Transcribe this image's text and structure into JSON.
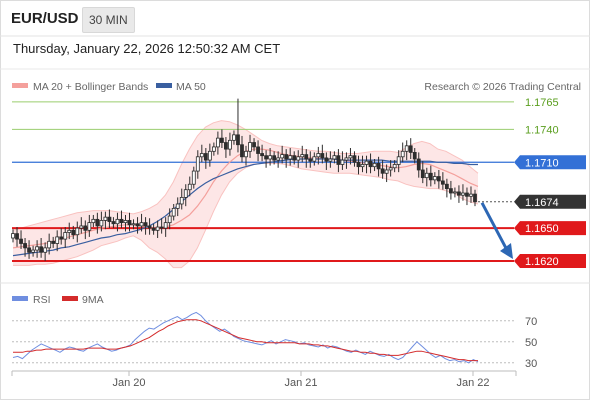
{
  "header": {
    "pair": "EUR/USD",
    "timeframe": "30 MIN",
    "datetime": "Thursday, January 22, 2026 12:50:32 AM CET"
  },
  "legend": {
    "ma20": "MA 20 + Bollinger Bands",
    "ma50": "MA 50",
    "credit": "Research © 2026 Trading Central",
    "rsi": "RSI",
    "rsi_ma": "9MA"
  },
  "colors": {
    "ma20": "#f4a09c",
    "ma50": "#3a5fa0",
    "band_fill": "#fde3e3",
    "candle": "#2d2d2d",
    "resistance": "#9acd6e",
    "pivot": "#3370d6",
    "support": "#e0191b",
    "current": "#333333",
    "arrow": "#2d67b4",
    "rsi": "#6f8ee0",
    "rsi_ma": "#d42b2b"
  },
  "chart_data": [
    {
      "type": "candlestick",
      "title": "EUR/USD 30 MIN",
      "ylim": [
        1.16,
        1.1795
      ],
      "x_tick_labels": [
        "Jan 20",
        "Jan 21",
        "Jan 22"
      ],
      "levels": [
        {
          "value": 1.1765,
          "label": "1.1765",
          "kind": "resistance"
        },
        {
          "value": 1.174,
          "label": "1.1740",
          "kind": "resistance"
        },
        {
          "value": 1.171,
          "label": "1.1710",
          "kind": "pivot"
        },
        {
          "value": 1.1674,
          "label": "1.1674",
          "kind": "current"
        },
        {
          "value": 1.165,
          "label": "1.1650",
          "kind": "support"
        },
        {
          "value": 1.162,
          "label": "1.1620",
          "kind": "support"
        }
      ],
      "close_series": [
        1.1645,
        1.164,
        1.1636,
        1.1632,
        1.1628,
        1.163,
        1.1633,
        1.1628,
        1.1632,
        1.1638,
        1.1636,
        1.1642,
        1.164,
        1.1646,
        1.1648,
        1.1644,
        1.165,
        1.1652,
        1.1648,
        1.1655,
        1.1658,
        1.1652,
        1.1657,
        1.166,
        1.1656,
        1.1654,
        1.1658,
        1.1655,
        1.1657,
        1.1653,
        1.1654,
        1.1652,
        1.1655,
        1.1652,
        1.165,
        1.1648,
        1.1651,
        1.165,
        1.1655,
        1.1661,
        1.1668,
        1.1672,
        1.1678,
        1.1685,
        1.169,
        1.1702,
        1.1715,
        1.1718,
        1.1712,
        1.172,
        1.1724,
        1.1732,
        1.1728,
        1.1722,
        1.173,
        1.1735,
        1.1726,
        1.1715,
        1.172,
        1.1728,
        1.1724,
        1.1718,
        1.1716,
        1.1713,
        1.1716,
        1.1712,
        1.1714,
        1.1717,
        1.1713,
        1.1716,
        1.1712,
        1.1715,
        1.1717,
        1.1713,
        1.1711,
        1.1715,
        1.1718,
        1.1714,
        1.1711,
        1.1713,
        1.1716,
        1.1708,
        1.1712,
        1.1714,
        1.1716,
        1.171,
        1.1706,
        1.1708,
        1.1711,
        1.1706,
        1.1709,
        1.1704,
        1.17,
        1.1703,
        1.1705,
        1.1708,
        1.1715,
        1.172,
        1.1725,
        1.1719,
        1.1713,
        1.1703,
        1.1696,
        1.17,
        1.1694,
        1.1697,
        1.1693,
        1.169,
        1.1686,
        1.1682,
        1.1683,
        1.168,
        1.1682,
        1.1679,
        1.1681,
        1.1674
      ],
      "ma20": [
        1.1632,
        1.1633,
        1.1634,
        1.1635,
        1.1636,
        1.1638,
        1.164,
        1.1642,
        1.1644,
        1.1646,
        1.1648,
        1.165,
        1.1651,
        1.1652,
        1.1653,
        1.1653,
        1.1652,
        1.165,
        1.165,
        1.1651,
        1.1653,
        1.1657,
        1.1662,
        1.167,
        1.168,
        1.1692,
        1.1702,
        1.171,
        1.1716,
        1.172,
        1.1722,
        1.1722,
        1.1721,
        1.1719,
        1.1717,
        1.1716,
        1.1715,
        1.1714,
        1.1714,
        1.1713,
        1.1713,
        1.1712,
        1.1711,
        1.171,
        1.1709,
        1.1708,
        1.1707,
        1.1706,
        1.1705,
        1.1706,
        1.1708,
        1.1709,
        1.1708,
        1.1705,
        1.1702,
        1.1699,
        1.1695,
        1.1691,
        1.1688
      ],
      "bb_upper": [
        1.1648,
        1.165,
        1.1652,
        1.1654,
        1.1656,
        1.1658,
        1.166,
        1.1662,
        1.1664,
        1.1665,
        1.1666,
        1.1666,
        1.1666,
        1.1665,
        1.1664,
        1.1663,
        1.1665,
        1.1668,
        1.1672,
        1.168,
        1.1692,
        1.1708,
        1.1722,
        1.1734,
        1.1742,
        1.1746,
        1.1748,
        1.1747,
        1.1744,
        1.174,
        1.1735,
        1.173,
        1.1727,
        1.1725,
        1.1724,
        1.1723,
        1.1722,
        1.1721,
        1.172,
        1.172,
        1.1719,
        1.1718,
        1.1718,
        1.1718,
        1.1719,
        1.172,
        1.172,
        1.172,
        1.1719,
        1.1723,
        1.1727,
        1.1729,
        1.1727,
        1.1722,
        1.172,
        1.1716,
        1.1712,
        1.1706,
        1.17
      ],
      "bb_lower": [
        1.1616,
        1.1616,
        1.1616,
        1.1617,
        1.1617,
        1.1618,
        1.162,
        1.1622,
        1.1624,
        1.1627,
        1.163,
        1.1634,
        1.1636,
        1.1638,
        1.1641,
        1.1643,
        1.1639,
        1.1632,
        1.1628,
        1.1622,
        1.1614,
        1.1614,
        1.162,
        1.1632,
        1.1648,
        1.1665,
        1.168,
        1.1692,
        1.17,
        1.1705,
        1.1708,
        1.1709,
        1.1709,
        1.1709,
        1.1708,
        1.1706,
        1.1704,
        1.1703,
        1.1702,
        1.1701,
        1.17,
        1.17,
        1.17,
        1.1699,
        1.1698,
        1.1697,
        1.1696,
        1.1694,
        1.1693,
        1.169,
        1.1688,
        1.1687,
        1.1686,
        1.1686,
        1.1684,
        1.1682,
        1.1677,
        1.1674,
        1.1672
      ],
      "ma50": [
        1.1625,
        1.1626,
        1.1627,
        1.1628,
        1.1629,
        1.163,
        1.1632,
        1.1633,
        1.1635,
        1.1637,
        1.1639,
        1.1641,
        1.1642,
        1.1644,
        1.1645,
        1.1647,
        1.1649,
        1.1652,
        1.1656,
        1.1661,
        1.1667,
        1.1674,
        1.168,
        1.1686,
        1.1691,
        1.1695,
        1.1698,
        1.1701,
        1.1704,
        1.1706,
        1.1708,
        1.1709,
        1.171,
        1.1711,
        1.1712,
        1.1713,
        1.1713,
        1.1713,
        1.1713,
        1.1713,
        1.1713,
        1.1712,
        1.1712,
        1.1712,
        1.1712,
        1.1712,
        1.1712,
        1.1711,
        1.1711,
        1.1711,
        1.1711,
        1.1711,
        1.1711,
        1.171,
        1.171,
        1.1709,
        1.1709,
        1.1708,
        1.1708
      ]
    },
    {
      "type": "line",
      "title": "RSI",
      "ylim": [
        25,
        85
      ],
      "y_tick_labels": [
        "70",
        "50",
        "30"
      ],
      "y_ticks": [
        70,
        50,
        30
      ],
      "rsi": [
        35,
        36,
        34,
        38,
        42,
        45,
        48,
        46,
        44,
        42,
        40,
        43,
        45,
        44,
        42,
        41,
        44,
        46,
        48,
        45,
        43,
        41,
        42,
        44,
        45,
        47,
        52,
        56,
        60,
        63,
        62,
        65,
        68,
        70,
        72,
        74,
        71,
        73,
        76,
        78,
        75,
        70,
        66,
        63,
        60,
        62,
        59,
        55,
        53,
        51,
        50,
        49,
        48,
        47,
        49,
        51,
        48,
        50,
        52,
        51,
        50,
        48,
        49,
        47,
        46,
        45,
        47,
        44,
        46,
        45,
        43,
        41,
        40,
        42,
        40,
        38,
        41,
        39,
        37,
        36,
        38,
        35,
        33,
        35,
        40,
        45,
        50,
        46,
        42,
        38,
        35,
        37,
        34,
        32,
        33,
        31,
        32,
        30,
        33,
        31
      ],
      "rsi_ma": [
        40,
        40,
        40,
        41,
        41,
        42,
        42,
        43,
        43,
        43,
        43,
        43,
        43,
        43,
        43,
        43,
        44,
        44,
        44,
        44,
        43,
        43,
        43,
        44,
        45,
        46,
        48,
        50,
        52,
        54,
        57,
        60,
        62,
        65,
        67,
        69,
        70,
        71,
        71,
        71,
        70,
        68,
        66,
        64,
        62,
        60,
        58,
        56,
        54,
        53,
        52,
        51,
        50,
        50,
        49,
        49,
        49,
        49,
        49,
        49,
        49,
        48,
        48,
        48,
        47,
        47,
        46,
        46,
        45,
        44,
        43,
        42,
        41,
        41,
        40,
        40,
        39,
        39,
        38,
        38,
        37,
        37,
        37,
        38,
        39,
        40,
        41,
        41,
        40,
        39,
        38,
        37,
        36,
        35,
        34,
        33,
        33,
        32,
        32,
        32
      ]
    }
  ]
}
